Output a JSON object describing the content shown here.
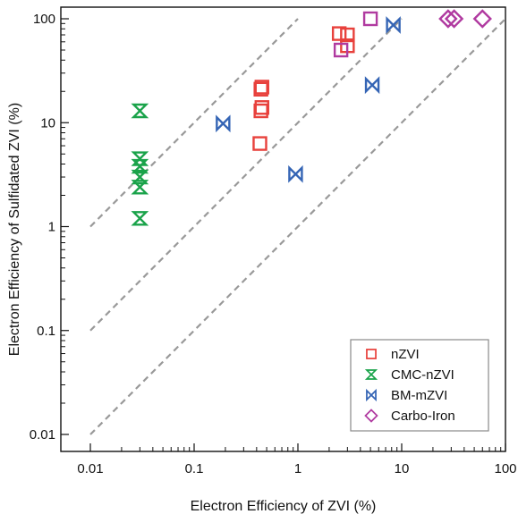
{
  "chart_data": {
    "type": "scatter",
    "title": "",
    "xlabel": "Electron Efficiency of ZVI (%)",
    "ylabel": "Electron Efficiency of Sulfidated ZVI (%)",
    "x_scale": "log",
    "y_scale": "log",
    "xlim": [
      0.01,
      100
    ],
    "ylim": [
      0.01,
      100
    ],
    "x_ticks": [
      "0.01",
      "0.1",
      "1",
      "10",
      "100"
    ],
    "y_ticks": [
      "0.01",
      "0.1",
      "1",
      "10",
      "100"
    ],
    "grid": false,
    "legend_position": "bottom-right",
    "reference_lines": [
      {
        "multiplier": 100,
        "style": "dashed",
        "color": "#999999"
      },
      {
        "multiplier": 10,
        "style": "dashed",
        "color": "#999999"
      },
      {
        "multiplier": 1,
        "style": "dashed",
        "color": "#999999"
      }
    ],
    "series": [
      {
        "name": "nZVI",
        "marker": "square",
        "color": "#e8413c",
        "points": [
          {
            "x": 0.45,
            "y": 22
          },
          {
            "x": 0.44,
            "y": 21
          },
          {
            "x": 0.45,
            "y": 14
          },
          {
            "x": 0.44,
            "y": 13
          },
          {
            "x": 0.43,
            "y": 6.3
          },
          {
            "x": 2.5,
            "y": 72
          },
          {
            "x": 3.0,
            "y": 70
          },
          {
            "x": 3.0,
            "y": 55
          }
        ]
      },
      {
        "name": "CMC-nZVI",
        "marker": "hourglass",
        "color": "#1aa34a",
        "points": [
          {
            "x": 0.03,
            "y": 13
          },
          {
            "x": 0.03,
            "y": 4.5
          },
          {
            "x": 0.03,
            "y": 3.8
          },
          {
            "x": 0.03,
            "y": 3.0
          },
          {
            "x": 0.03,
            "y": 2.4
          },
          {
            "x": 0.03,
            "y": 1.2
          }
        ]
      },
      {
        "name": "BM-mZVI",
        "marker": "bowtie",
        "color": "#3565b5",
        "points": [
          {
            "x": 0.19,
            "y": 9.8
          },
          {
            "x": 0.95,
            "y": 3.2
          },
          {
            "x": 5.2,
            "y": 23
          },
          {
            "x": 8.3,
            "y": 87
          }
        ]
      },
      {
        "name": "Carbo-Iron",
        "marker": "diamond",
        "color": "#b03aa0",
        "points": [
          {
            "x": 28,
            "y": 100
          },
          {
            "x": 32,
            "y": 100
          },
          {
            "x": 60,
            "y": 100
          }
        ]
      },
      {
        "name": "",
        "marker": "square",
        "color": "#b03aa0",
        "in_legend": false,
        "points": [
          {
            "x": 5.0,
            "y": 100
          },
          {
            "x": 2.6,
            "y": 50
          }
        ]
      }
    ]
  }
}
